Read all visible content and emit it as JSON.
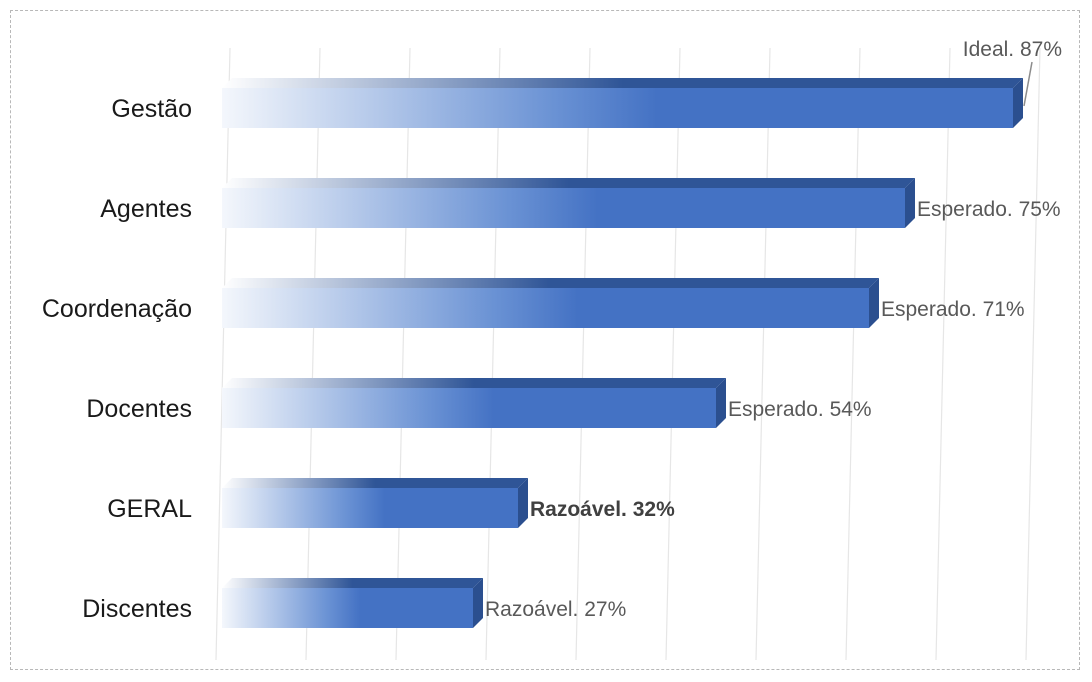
{
  "chart_data": {
    "type": "bar",
    "orientation": "horizontal",
    "style": "3d-gradient",
    "categories": [
      "Gestão",
      "Agentes",
      "Coordenação",
      "Docentes",
      "GERAL",
      "Discentes"
    ],
    "values": [
      87,
      75,
      71,
      54,
      32,
      27
    ],
    "data_labels": [
      "Ideal. 87%",
      "Esperado. 75%",
      "Esperado. 71%",
      "Esperado. 54%",
      "Razoável. 32%",
      "Razoável. 27%"
    ],
    "highlighted_label": "Razoável. 32%",
    "xlim": [
      0,
      90
    ],
    "grid": true,
    "legend": "none",
    "title": "",
    "xlabel": "",
    "ylabel": "",
    "colors": {
      "bar_front": "#4472c4",
      "bar_top": "#2f5597",
      "bar_side": "#2b4f8f",
      "bar_fade": "#f4f7fc",
      "grid": "#e6e6e6",
      "label_text": "#595959",
      "category_text": "#1a1a1a"
    }
  }
}
